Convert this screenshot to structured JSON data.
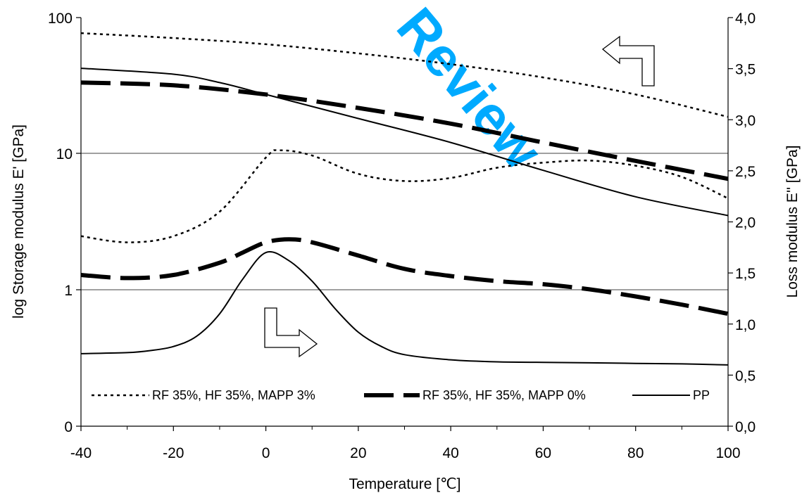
{
  "watermark": {
    "text": "Review",
    "color": "#00aaff"
  },
  "chart_data": {
    "type": "line",
    "xlabel": "Temperature [℃]",
    "ylabel_left": "log Storage modulus E' [GPa]",
    "ylabel_right": "Loss modulus E'' [GPa]",
    "xlim": [
      -40,
      100
    ],
    "x_ticks": [
      "-40",
      "-20",
      "0",
      "20",
      "40",
      "60",
      "80",
      "100"
    ],
    "y_left_scale": "log",
    "y_left_ticks": [
      "0",
      "1",
      "10",
      "100"
    ],
    "y_right_lim": [
      0.0,
      4.0
    ],
    "y_right_ticks": [
      "0,0",
      "0,5",
      "1,0",
      "1,5",
      "2,0",
      "2,5",
      "3,0",
      "3,5",
      "4,0"
    ],
    "grid": "horizontal at 1 and 10",
    "legend_position": "bottom",
    "annotations": [
      "left-pointing arrow: upper curves read on left axis",
      "right-pointing arrow: lower curves read on right axis"
    ],
    "series": [
      {
        "name": "RF 35%, HF 35%, MAPP 3%",
        "style": "dotted",
        "axis": "left",
        "x": [
          -40,
          -20,
          0,
          20,
          40,
          60,
          80,
          100
        ],
        "y": [
          76,
          70,
          63,
          54,
          45,
          36,
          27,
          18.5
        ]
      },
      {
        "name": "RF 35%, HF 35%, MAPP 0%",
        "style": "dashed",
        "axis": "left",
        "x": [
          -40,
          -20,
          0,
          20,
          40,
          60,
          80,
          100
        ],
        "y": [
          33,
          31.5,
          27,
          21.5,
          16.5,
          12,
          8.8,
          6.5
        ]
      },
      {
        "name": "PP",
        "style": "solid",
        "axis": "left",
        "x": [
          -40,
          -20,
          -10,
          0,
          20,
          40,
          60,
          80,
          100
        ],
        "y": [
          42,
          38,
          33,
          27,
          18,
          12,
          7.5,
          4.8,
          3.5
        ]
      },
      {
        "name": "RF 35%, HF 35%, MAPP 3%",
        "style": "dotted",
        "axis": "right",
        "x": [
          -40,
          -30,
          -20,
          -10,
          0,
          3,
          10,
          20,
          30,
          40,
          50,
          60,
          70,
          80,
          90,
          100
        ],
        "y": [
          1.86,
          1.8,
          1.86,
          2.1,
          2.63,
          2.7,
          2.65,
          2.47,
          2.4,
          2.43,
          2.53,
          2.58,
          2.6,
          2.55,
          2.44,
          2.23
        ]
      },
      {
        "name": "RF 35%, HF 35%, MAPP 0%",
        "style": "dashed",
        "axis": "right",
        "x": [
          -40,
          -30,
          -20,
          -10,
          -5,
          0,
          5,
          10,
          20,
          30,
          40,
          50,
          60,
          70,
          80,
          90,
          100
        ],
        "y": [
          1.48,
          1.45,
          1.48,
          1.6,
          1.7,
          1.8,
          1.83,
          1.8,
          1.67,
          1.54,
          1.47,
          1.42,
          1.39,
          1.34,
          1.27,
          1.19,
          1.1
        ]
      },
      {
        "name": "PP",
        "style": "solid",
        "axis": "right",
        "x": [
          -40,
          -30,
          -25,
          -20,
          -15,
          -10,
          -5,
          0,
          5,
          10,
          15,
          20,
          25,
          30,
          40,
          50,
          60,
          70,
          80,
          90,
          100
        ],
        "y": [
          0.71,
          0.72,
          0.74,
          0.78,
          0.88,
          1.1,
          1.44,
          1.7,
          1.62,
          1.42,
          1.15,
          0.92,
          0.78,
          0.7,
          0.65,
          0.63,
          0.625,
          0.62,
          0.615,
          0.61,
          0.6
        ]
      }
    ]
  }
}
